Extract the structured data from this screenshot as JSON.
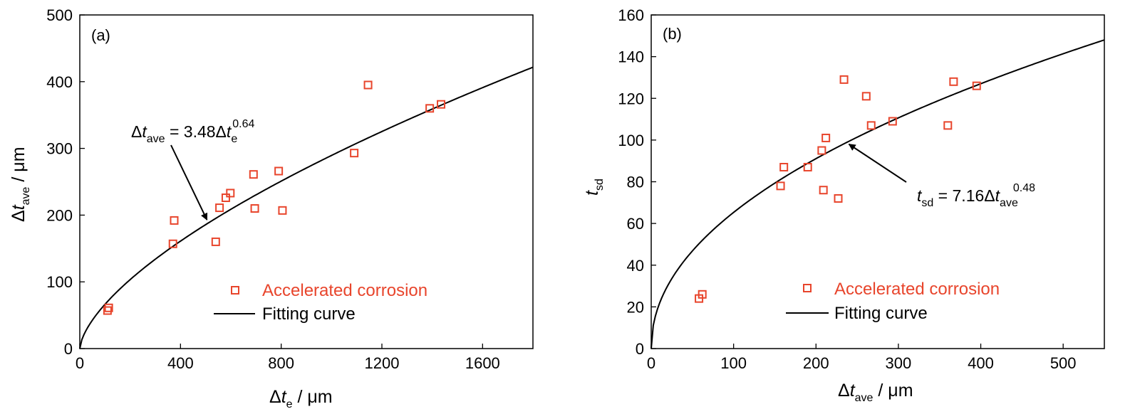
{
  "colors": {
    "marker": "#e8452c",
    "fit": "#000000"
  },
  "chart_data": [
    {
      "type": "scatter",
      "panel_label": "(a)",
      "xlabel": {
        "delta": "Δ",
        "sym": "t",
        "sub": "e",
        "unit": " / μm"
      },
      "ylabel": {
        "delta": "Δ",
        "sym": "t",
        "sub": "ave",
        "unit": " / μm"
      },
      "xlim": [
        0,
        1800
      ],
      "ylim": [
        0,
        500
      ],
      "xticks": [
        0,
        400,
        800,
        1200,
        1600
      ],
      "yticks": [
        0,
        100,
        200,
        300,
        400,
        500
      ],
      "xtick_labels": [
        "0",
        "400",
        "800",
        "1200",
        "1600"
      ],
      "ytick_labels": [
        "0",
        "100",
        "200",
        "300",
        "400",
        "500"
      ],
      "grid": false,
      "legend_position": "bottom-right",
      "series": [
        {
          "name": "Accelerated corrosion",
          "kind": "markers",
          "x": [
            110,
            115,
            370,
            375,
            540,
            555,
            580,
            598,
            690,
            695,
            790,
            805,
            1090,
            1145,
            1390,
            1435
          ],
          "y": [
            57,
            61,
            157,
            192,
            160,
            211,
            226,
            233,
            261,
            210,
            266,
            207,
            293,
            395,
            360,
            366
          ]
        },
        {
          "name": "Fitting curve",
          "kind": "line",
          "fit": {
            "a": 3.48,
            "b": 0.64
          }
        }
      ],
      "annotation": {
        "lhs": {
          "delta": "Δ",
          "sym": "t",
          "sub": "ave"
        },
        "rhs": {
          "coef": " = 3.48",
          "delta": "Δ",
          "sym": "t",
          "sub": "e",
          "exp": "0.64"
        },
        "arrow_to": {
          "x": 505,
          "y": 193
        }
      }
    },
    {
      "type": "scatter",
      "panel_label": "(b)",
      "xlabel": {
        "delta": "Δ",
        "sym": "t",
        "sub": "ave",
        "unit": " / μm"
      },
      "ylabel": {
        "delta": "",
        "sym": "t",
        "sub": "sd",
        "unit": ""
      },
      "xlim": [
        0,
        550
      ],
      "ylim": [
        0,
        160
      ],
      "xticks": [
        0,
        100,
        200,
        300,
        400,
        500
      ],
      "yticks": [
        0,
        20,
        40,
        60,
        80,
        100,
        120,
        140,
        160
      ],
      "xtick_labels": [
        "0",
        "100",
        "200",
        "300",
        "400",
        "500"
      ],
      "ytick_labels": [
        "0",
        "20",
        "40",
        "60",
        "80",
        "100",
        "120",
        "140",
        "160"
      ],
      "grid": false,
      "legend_position": "bottom-right",
      "series": [
        {
          "name": "Accelerated corrosion",
          "kind": "markers",
          "x": [
            58,
            62,
            157,
            161,
            190,
            207,
            209,
            212,
            227,
            234,
            261,
            267,
            293,
            360,
            367,
            395
          ],
          "y": [
            24,
            26,
            78,
            87,
            87,
            95,
            76,
            101,
            72,
            129,
            121,
            107,
            109,
            107,
            128,
            126
          ]
        },
        {
          "name": "Fitting curve",
          "kind": "line",
          "fit": {
            "a": 7.16,
            "b": 0.48
          }
        }
      ],
      "annotation": {
        "lhs": {
          "delta": "",
          "sym": "t",
          "sub": "sd"
        },
        "rhs": {
          "coef": " = 7.16",
          "delta": "Δ",
          "sym": "t",
          "sub": "ave",
          "exp": "0.48"
        },
        "arrow_to": {
          "x": 240,
          "y": 98
        }
      }
    }
  ]
}
